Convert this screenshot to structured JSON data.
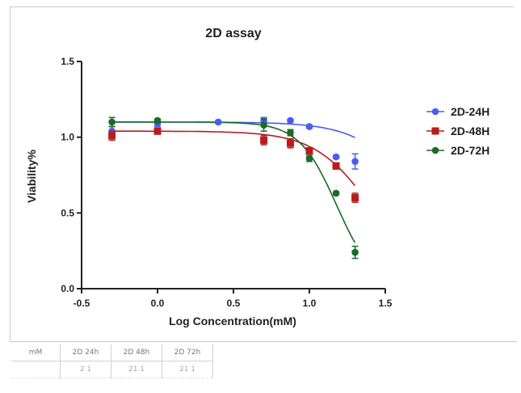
{
  "chart_data": {
    "type": "scatter",
    "title": "2D assay",
    "xlabel": "Log Concentration(mM)",
    "ylabel": "Viability%",
    "xlim": [
      -0.5,
      1.5
    ],
    "ylim": [
      0.0,
      1.5
    ],
    "xticks": [
      "-0.5",
      "0.0",
      "0.5",
      "1.0",
      "1.5"
    ],
    "yticks": [
      "0.0",
      "0.5",
      "1.0",
      "1.5"
    ],
    "legend_position": "right",
    "grid": false,
    "series": [
      {
        "name": "2D-24H",
        "color": "#4a5cf0",
        "marker": "circle",
        "points": [
          {
            "x": -0.3,
            "y": 1.04,
            "err": 0.03
          },
          {
            "x": 0.0,
            "y": 1.09,
            "err": 0.02
          },
          {
            "x": 0.4,
            "y": 1.1,
            "err": 0.01
          },
          {
            "x": 0.7,
            "y": 1.11,
            "err": 0.02
          },
          {
            "x": 0.875,
            "y": 1.11,
            "err": 0.01
          },
          {
            "x": 1.0,
            "y": 1.07,
            "err": 0.01
          },
          {
            "x": 1.176,
            "y": 0.87,
            "err": 0.01
          },
          {
            "x": 1.301,
            "y": 0.84,
            "err": 0.05
          }
        ],
        "fit": {
          "top": 1.1,
          "bottom": 0.0,
          "logec50": 1.75,
          "hill": 2.2
        }
      },
      {
        "name": "2D-48H",
        "color": "#b81c1c",
        "marker": "square",
        "points": [
          {
            "x": -0.3,
            "y": 1.01,
            "err": 0.03
          },
          {
            "x": 0.0,
            "y": 1.04,
            "err": 0.02
          },
          {
            "x": 0.7,
            "y": 0.98,
            "err": 0.03
          },
          {
            "x": 0.875,
            "y": 0.96,
            "err": 0.03
          },
          {
            "x": 1.0,
            "y": 0.91,
            "err": 0.02
          },
          {
            "x": 1.176,
            "y": 0.81,
            "err": 0.02
          },
          {
            "x": 1.301,
            "y": 0.6,
            "err": 0.03
          }
        ],
        "fit": {
          "top": 1.04,
          "bottom": 0.0,
          "logec50": 1.42,
          "hill": 2.3
        }
      },
      {
        "name": "2D-72H",
        "color": "#1a6a2a",
        "marker": "circle",
        "points": [
          {
            "x": -0.3,
            "y": 1.1,
            "err": 0.03
          },
          {
            "x": 0.0,
            "y": 1.11,
            "err": 0.01
          },
          {
            "x": 0.7,
            "y": 1.08,
            "err": 0.04
          },
          {
            "x": 0.875,
            "y": 1.03,
            "err": 0.02
          },
          {
            "x": 1.0,
            "y": 0.86,
            "err": 0.02
          },
          {
            "x": 1.176,
            "y": 0.63,
            "err": 0.01
          },
          {
            "x": 1.301,
            "y": 0.24,
            "err": 0.04
          }
        ],
        "fit": {
          "top": 1.1,
          "bottom": 0.0,
          "logec50": 1.18,
          "hill": 3.5
        }
      }
    ]
  },
  "table": {
    "headers": [
      "mM",
      "2D 24h",
      "2D 48h",
      "2D 72h"
    ],
    "row": [
      "",
      "2   1",
      "21  1",
      "21  1"
    ]
  }
}
